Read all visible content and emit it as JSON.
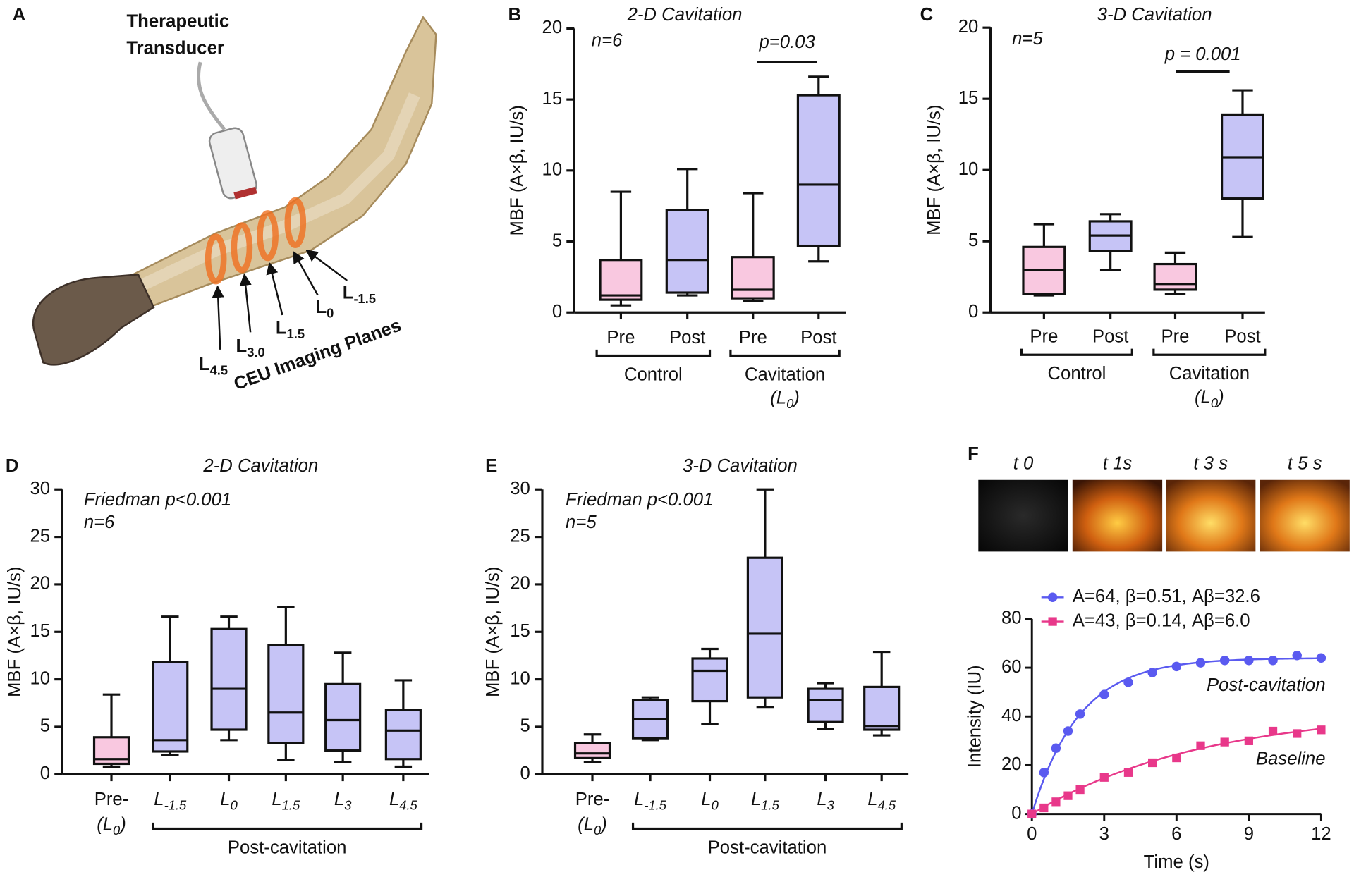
{
  "panel_labels": [
    "A",
    "B",
    "C",
    "D",
    "E",
    "F"
  ],
  "illustration": {
    "transducer_label": [
      "Therapeutic",
      "Transducer"
    ],
    "planes": [
      {
        "base": "L",
        "sub": "4.5"
      },
      {
        "base": "L",
        "sub": "3.0"
      },
      {
        "base": "L",
        "sub": "1.5"
      },
      {
        "base": "L",
        "sub": "0"
      },
      {
        "base": "L",
        "sub": "-1.5"
      }
    ],
    "caption": "CEU Imaging Planes"
  },
  "images": {
    "labels": [
      "t 0",
      "t 1s",
      "t 3 s",
      "t 5 s"
    ]
  },
  "chart_data": [
    {
      "type": "box",
      "title": "2-D Cavitation",
      "y_label": "MBF (A×β, IU/s)",
      "annotations": [
        "n=6"
      ],
      "pvalue": "p=0.03",
      "categories": [
        "Pre",
        "Post",
        "Pre",
        "Post"
      ],
      "groups": [
        {
          "label": "Control"
        },
        {
          "label": "Cavitation",
          "note": {
            "base": "(L",
            "sub": "0",
            "tail": ")"
          }
        }
      ],
      "boxes": [
        {
          "min": 0.5,
          "q1": 0.9,
          "median": 1.2,
          "q3": 3.7,
          "max": 8.5,
          "color": "#f9c8e0"
        },
        {
          "min": 1.2,
          "q1": 1.4,
          "median": 3.7,
          "q3": 7.2,
          "max": 10.1,
          "color": "#c6c4f6"
        },
        {
          "min": 0.8,
          "q1": 1.0,
          "median": 1.6,
          "q3": 3.9,
          "max": 8.4,
          "color": "#f9c8e0"
        },
        {
          "min": 3.6,
          "q1": 4.7,
          "median": 9.0,
          "q3": 15.3,
          "max": 16.6,
          "color": "#c6c4f6"
        }
      ],
      "ylim": [
        0,
        20
      ],
      "yticks": [
        0,
        5,
        10,
        15,
        20
      ]
    },
    {
      "type": "box",
      "title": "3-D  Cavitation",
      "y_label": "MBF (A×β, IU/s)",
      "annotations": [
        "n=5"
      ],
      "pvalue": "p = 0.001",
      "categories": [
        "Pre",
        "Post",
        "Pre",
        "Post"
      ],
      "groups": [
        {
          "label": "Control"
        },
        {
          "label": "Cavitation",
          "note": {
            "base": "(L",
            "sub": "0",
            "tail": ")"
          }
        }
      ],
      "boxes": [
        {
          "min": 1.2,
          "q1": 1.3,
          "median": 3.0,
          "q3": 4.6,
          "max": 6.2,
          "color": "#f9c8e0"
        },
        {
          "min": 3.0,
          "q1": 4.3,
          "median": 5.4,
          "q3": 6.4,
          "max": 6.9,
          "color": "#c6c4f6"
        },
        {
          "min": 1.3,
          "q1": 1.6,
          "median": 2.0,
          "q3": 3.4,
          "max": 4.2,
          "color": "#f9c8e0"
        },
        {
          "min": 5.3,
          "q1": 8.0,
          "median": 10.9,
          "q3": 13.9,
          "max": 15.6,
          "color": "#c6c4f6"
        }
      ],
      "ylim": [
        0,
        20
      ],
      "yticks": [
        0,
        5,
        10,
        15,
        20
      ]
    },
    {
      "type": "box",
      "title": "2-D Cavitation",
      "y_label": "MBF (A×β, IU/s)",
      "annotations": [
        "Friedman p<0.001",
        "n=6"
      ],
      "categories": [
        "Pre-",
        {
          "base": "L",
          "sub": "-1.5"
        },
        {
          "base": "L",
          "sub": "0"
        },
        {
          "base": "L",
          "sub": "1.5"
        },
        {
          "base": "L",
          "sub": "3"
        },
        {
          "base": "L",
          "sub": "4.5"
        }
      ],
      "category_note": {
        "base": "(L",
        "sub": "0",
        "tail": ")"
      },
      "groups": [
        {
          "label": "Post-cavitation"
        }
      ],
      "boxes": [
        {
          "min": 0.8,
          "q1": 1.1,
          "median": 1.6,
          "q3": 3.9,
          "max": 8.4,
          "color": "#f9c8e0"
        },
        {
          "min": 2.0,
          "q1": 2.4,
          "median": 3.6,
          "q3": 11.8,
          "max": 16.6,
          "color": "#c6c4f6"
        },
        {
          "min": 3.6,
          "q1": 4.7,
          "median": 9.0,
          "q3": 15.3,
          "max": 16.6,
          "color": "#c6c4f6"
        },
        {
          "min": 1.5,
          "q1": 3.3,
          "median": 6.5,
          "q3": 13.6,
          "max": 17.6,
          "color": "#c6c4f6"
        },
        {
          "min": 1.3,
          "q1": 2.5,
          "median": 5.7,
          "q3": 9.5,
          "max": 12.8,
          "color": "#c6c4f6"
        },
        {
          "min": 0.8,
          "q1": 1.6,
          "median": 4.6,
          "q3": 6.8,
          "max": 9.9,
          "color": "#c6c4f6"
        }
      ],
      "ylim": [
        0,
        30
      ],
      "yticks": [
        0,
        5,
        10,
        15,
        20,
        25,
        30
      ]
    },
    {
      "type": "box",
      "title": "3-D Cavitation",
      "y_label": "MBF (A×β, IU/s)",
      "annotations": [
        "Friedman p<0.001",
        "n=5"
      ],
      "categories": [
        "Pre-",
        {
          "base": "L",
          "sub": "-1.5"
        },
        {
          "base": "L",
          "sub": "0"
        },
        {
          "base": "L",
          "sub": "1.5"
        },
        {
          "base": "L",
          "sub": "3"
        },
        {
          "base": "L",
          "sub": "4.5"
        }
      ],
      "category_note": {
        "base": "(L",
        "sub": "0",
        "tail": ")"
      },
      "groups": [
        {
          "label": "Post-cavitation"
        }
      ],
      "boxes": [
        {
          "min": 1.3,
          "q1": 1.7,
          "median": 2.2,
          "q3": 3.3,
          "max": 4.2,
          "color": "#f9c8e0"
        },
        {
          "min": 3.6,
          "q1": 3.8,
          "median": 5.8,
          "q3": 7.8,
          "max": 8.1,
          "color": "#c6c4f6"
        },
        {
          "min": 5.3,
          "q1": 7.7,
          "median": 10.9,
          "q3": 12.2,
          "max": 13.2,
          "color": "#c6c4f6"
        },
        {
          "min": 7.1,
          "q1": 8.1,
          "median": 14.8,
          "q3": 22.8,
          "max": 30.0,
          "color": "#c6c4f6"
        },
        {
          "min": 4.8,
          "q1": 5.5,
          "median": 7.8,
          "q3": 9.0,
          "max": 9.6,
          "color": "#c6c4f6"
        },
        {
          "min": 4.1,
          "q1": 4.7,
          "median": 5.1,
          "q3": 9.2,
          "max": 12.9,
          "color": "#c6c4f6"
        }
      ],
      "ylim": [
        0,
        30
      ],
      "yticks": [
        0,
        5,
        10,
        15,
        20,
        25,
        30
      ]
    },
    {
      "type": "scatter",
      "x_label": "Time (s)",
      "y_label": "Intensity (IU)",
      "x": [
        0,
        0.5,
        1,
        1.5,
        2,
        3,
        4,
        5,
        6,
        7,
        8,
        9,
        10,
        11,
        12
      ],
      "series": [
        {
          "name": "A=64, β=0.51, Aβ=32.6",
          "color": "#5a5af0",
          "marker": "circle",
          "annotation": "Post-cavitation",
          "fit": {
            "A": 64,
            "beta": 0.51
          },
          "values": [
            0,
            17,
            27,
            34,
            41,
            49,
            54,
            58,
            60.5,
            62,
            63,
            63,
            63,
            65,
            64
          ]
        },
        {
          "name": "A=43, β=0.14, Aβ=6.0",
          "color": "#e8388a",
          "marker": "square",
          "annotation": "Baseline",
          "fit": {
            "A": 43,
            "beta": 0.14
          },
          "values": [
            0,
            2.5,
            5,
            7.5,
            10,
            15,
            17,
            21,
            23,
            28,
            29.5,
            30,
            34,
            33,
            34.5
          ]
        }
      ],
      "xlim": [
        0,
        12
      ],
      "xticks": [
        0,
        3,
        6,
        9,
        12
      ],
      "ylim": [
        0,
        80
      ],
      "yticks": [
        0,
        20,
        40,
        60,
        80
      ]
    }
  ]
}
